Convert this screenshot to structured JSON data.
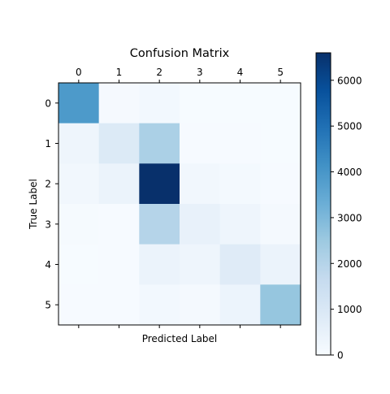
{
  "chart_data": {
    "type": "heatmap",
    "title": "Confusion Matrix",
    "xlabel": "Predicted Label",
    "ylabel": "True Label",
    "x_categories": [
      "0",
      "1",
      "2",
      "3",
      "4",
      "5"
    ],
    "y_categories": [
      "0",
      "1",
      "2",
      "3",
      "4",
      "5"
    ],
    "values": [
      [
        3900,
        80,
        150,
        20,
        20,
        20
      ],
      [
        300,
        900,
        2200,
        30,
        30,
        20
      ],
      [
        200,
        400,
        6600,
        200,
        120,
        30
      ],
      [
        60,
        30,
        2000,
        500,
        300,
        100
      ],
      [
        20,
        30,
        400,
        300,
        800,
        400
      ],
      [
        40,
        40,
        150,
        100,
        350,
        2600
      ]
    ],
    "colormap": "Blues",
    "colormap_range": [
      0,
      6600
    ],
    "colorbar_ticks": [
      0,
      1000,
      2000,
      3000,
      4000,
      5000,
      6000
    ],
    "colors": {
      "min": "#f7fbff",
      "stops": [
        "#f7fbff",
        "#deebf7",
        "#c6dbef",
        "#9ecae1",
        "#6baed6",
        "#4292c6",
        "#2171b5",
        "#08519c",
        "#08306b"
      ]
    }
  }
}
